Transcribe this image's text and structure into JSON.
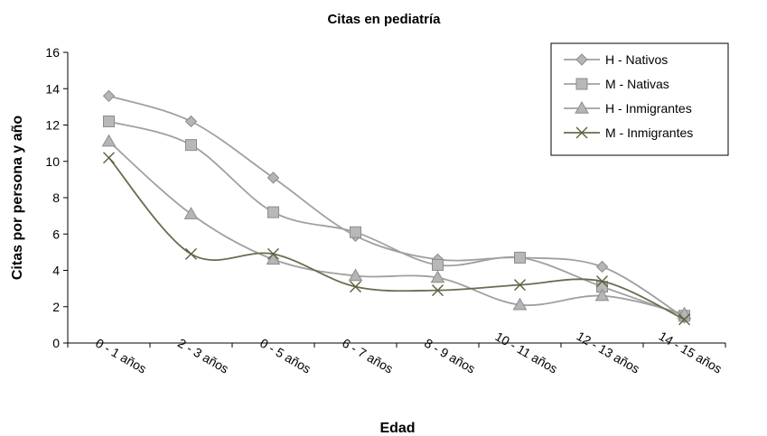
{
  "chart_data": {
    "type": "line",
    "title": "Citas en pediatría",
    "xlabel": "Edad",
    "ylabel": "Citas por persona y año",
    "categories": [
      "0 - 1 años",
      "2 - 3 años",
      "0 - 5 años",
      "6 - 7 años",
      "8 - 9 años",
      "10 - 11 años",
      "12 - 13 años",
      "14 - 15 años"
    ],
    "ylim": [
      0,
      16
    ],
    "yticks": [
      0,
      2,
      4,
      6,
      8,
      10,
      12,
      14,
      16
    ],
    "grid": false,
    "legend": "top-right",
    "smooth": true,
    "series": [
      {
        "name": "H - Nativos",
        "marker": "diamond",
        "color": "#a0a0a0",
        "values": [
          13.6,
          12.2,
          9.1,
          5.9,
          4.6,
          4.7,
          4.2,
          1.4
        ]
      },
      {
        "name": "M - Nativas",
        "marker": "square",
        "color": "#a0a0a0",
        "values": [
          12.2,
          10.9,
          7.2,
          6.1,
          4.3,
          4.7,
          3.1,
          1.5
        ]
      },
      {
        "name": "H - Inmigrantes",
        "marker": "triangle",
        "color": "#a0a0a0",
        "values": [
          11.1,
          7.1,
          4.6,
          3.7,
          3.6,
          2.1,
          2.6,
          1.6
        ]
      },
      {
        "name": "M - Inmigrantes",
        "marker": "x",
        "color": "#6b6b4e",
        "values": [
          10.2,
          4.9,
          4.9,
          3.1,
          2.9,
          3.2,
          3.4,
          1.3
        ]
      }
    ]
  }
}
